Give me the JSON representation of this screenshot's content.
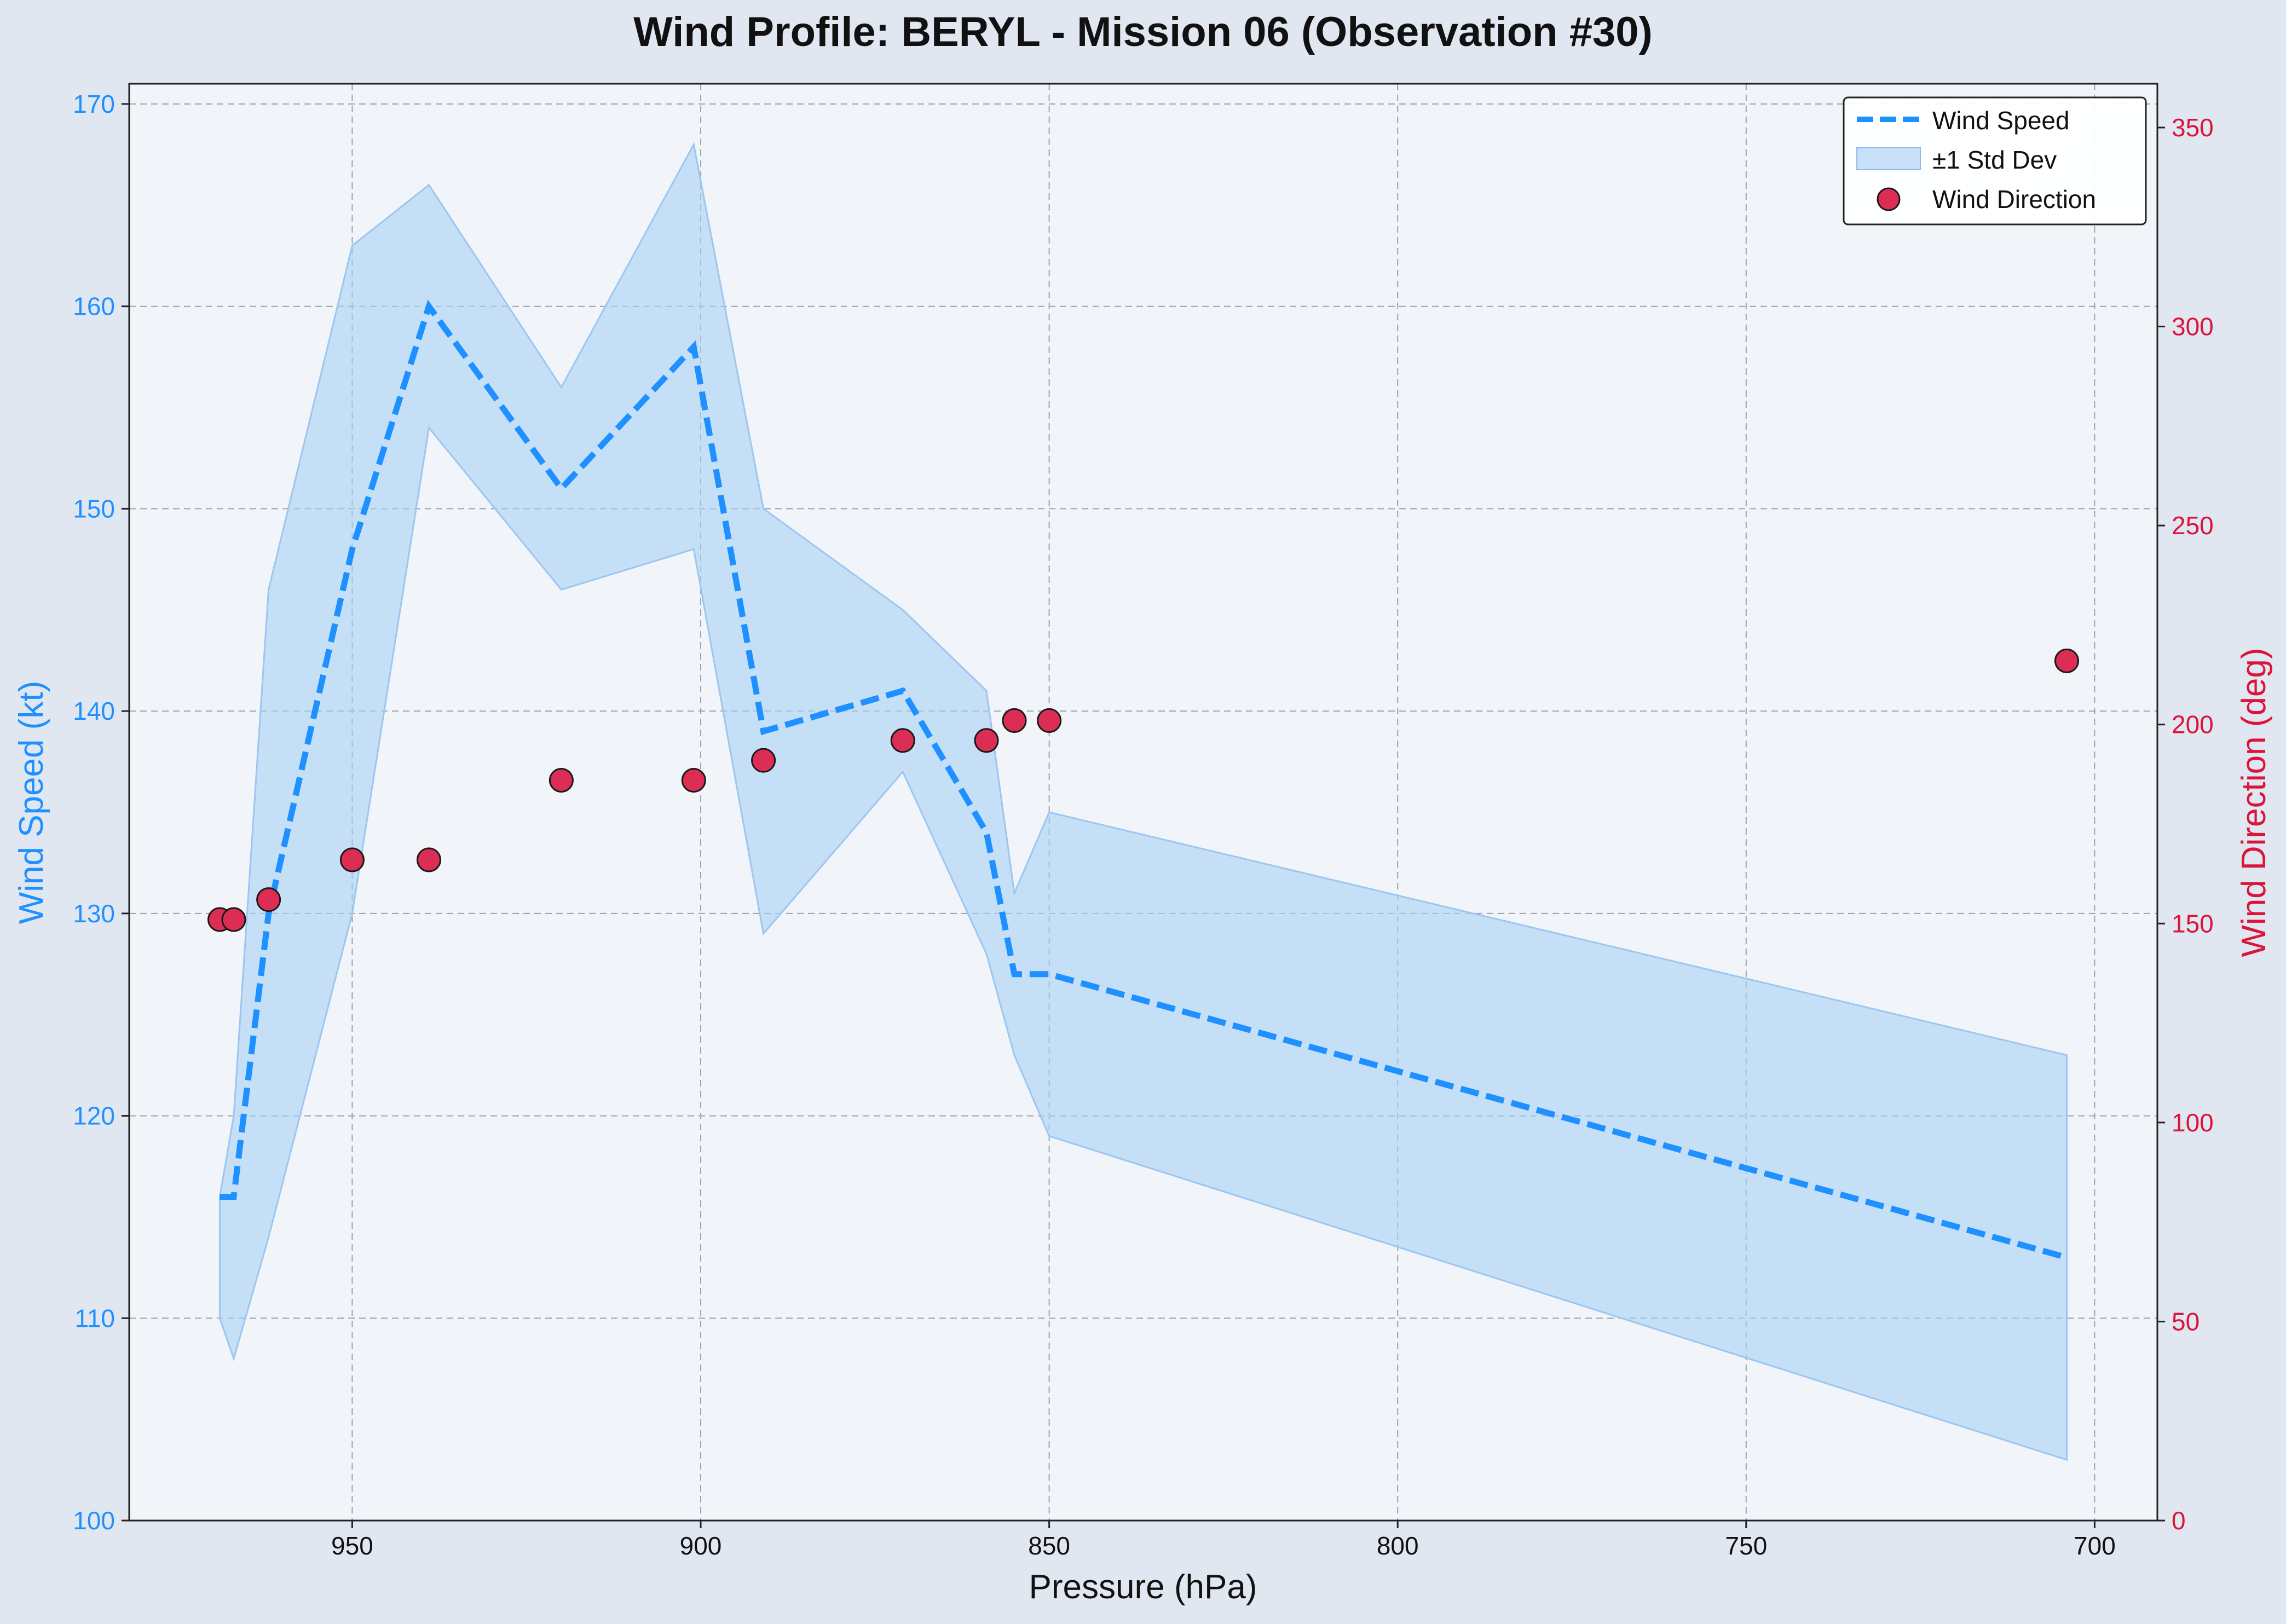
{
  "chart_data": {
    "type": "line",
    "title": "Wind Profile: BERYL - Mission 06 (Observation #30)",
    "xlabel": "Pressure (hPa)",
    "ylabel": "Wind Speed (kt)",
    "y2label": "Wind Direction (deg)",
    "x_inverted": true,
    "xlim": [
      982,
      691
    ],
    "ylim": [
      100,
      171
    ],
    "y2lim": [
      0,
      361
    ],
    "xticks": [
      950,
      900,
      850,
      800,
      750,
      700
    ],
    "yticks": [
      100,
      110,
      120,
      130,
      140,
      150,
      160,
      170
    ],
    "y2ticks": [
      0,
      50,
      100,
      150,
      200,
      250,
      300,
      350
    ],
    "grid": true,
    "legend_position": "top-right",
    "colors": {
      "speed": "#1e90ff",
      "band": "#a9d0f5",
      "direction": "#dc2e55",
      "left_axis": "#1e90ff",
      "right_axis": "#dc143c"
    },
    "x": [
      969,
      967,
      962,
      950,
      939,
      920,
      901,
      891,
      871,
      859,
      855,
      850,
      704
    ],
    "series": [
      {
        "name": "Wind Speed",
        "axis": "left",
        "values": [
          116,
          116,
          130,
          148,
          160,
          151,
          158,
          139,
          141,
          134,
          127,
          127,
          113
        ]
      },
      {
        "name": "±1 Std Dev",
        "axis": "left",
        "lower": [
          110,
          108,
          114,
          130,
          154,
          146,
          148,
          129,
          137,
          128,
          123,
          119,
          103
        ],
        "upper": [
          116,
          120,
          146,
          163,
          166,
          156,
          168,
          150,
          145,
          141,
          131,
          135,
          123
        ]
      },
      {
        "name": "Wind Direction",
        "axis": "right",
        "values": [
          151,
          151,
          156,
          166,
          166,
          186,
          186,
          191,
          196,
          196,
          201,
          201,
          216
        ]
      }
    ]
  }
}
